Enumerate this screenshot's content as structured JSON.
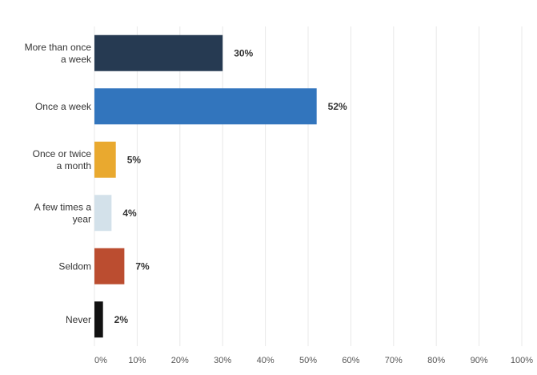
{
  "chart_data": {
    "type": "bar",
    "orientation": "horizontal",
    "categories": [
      [
        "More than once",
        "a week"
      ],
      [
        "Once a week"
      ],
      [
        "Once or twice",
        "a month"
      ],
      [
        "A few times a",
        "year"
      ],
      [
        "Seldom"
      ],
      [
        "Never"
      ]
    ],
    "values": [
      30,
      52,
      5,
      4,
      7,
      2
    ],
    "value_labels": [
      "30%",
      "52%",
      "5%",
      "4%",
      "7%",
      "2%"
    ],
    "colors": [
      "#263a52",
      "#3275bd",
      "#e9a92f",
      "#d3e1ea",
      "#bb4d30",
      "#111111"
    ],
    "xlim": [
      0,
      100
    ],
    "xticks": [
      0,
      10,
      20,
      30,
      40,
      50,
      60,
      70,
      80,
      90,
      100
    ],
    "xtick_labels": [
      "0%",
      "10%",
      "20%",
      "30%",
      "40%",
      "50%",
      "60%",
      "70%",
      "80%",
      "90%",
      "100%"
    ],
    "grid": true
  }
}
